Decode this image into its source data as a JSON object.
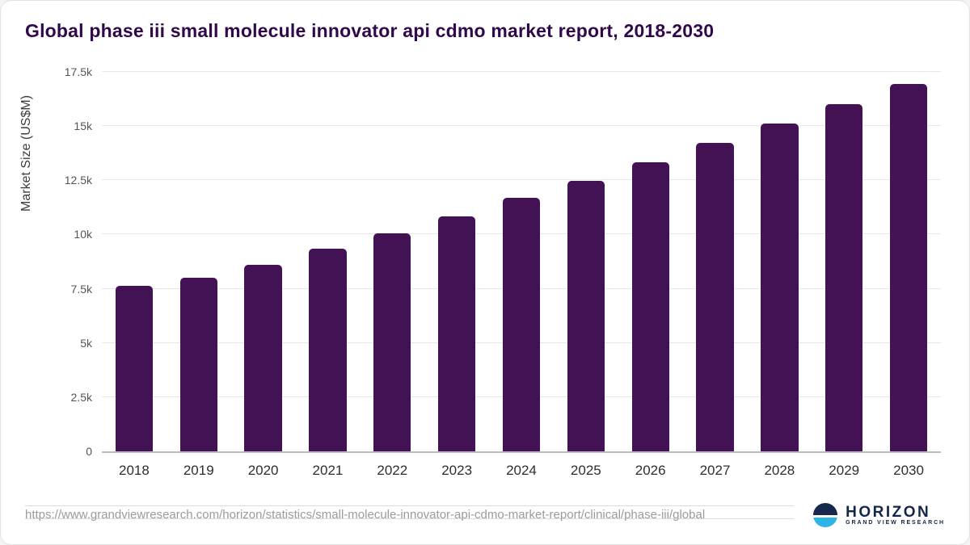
{
  "title": "Global phase iii small molecule innovator api cdmo market report, 2018-2030",
  "chart_data": {
    "type": "bar",
    "title": "Global phase iii small molecule innovator api cdmo market report, 2018-2030",
    "categories": [
      "2018",
      "2019",
      "2020",
      "2021",
      "2022",
      "2023",
      "2024",
      "2025",
      "2026",
      "2027",
      "2028",
      "2029",
      "2030"
    ],
    "values": [
      7620,
      7990,
      8590,
      9360,
      10040,
      10830,
      11680,
      12470,
      13320,
      14210,
      15110,
      16020,
      16950
    ],
    "xlabel": "",
    "ylabel": "Market Size (US$M)",
    "ylim": [
      0,
      17500
    ],
    "yticks": [
      0,
      2500,
      5000,
      7500,
      10000,
      12500,
      15000,
      17500
    ],
    "ytick_labels": [
      "0",
      "2.5k",
      "5k",
      "7.5k",
      "10k",
      "12.5k",
      "15k",
      "17.5k"
    ],
    "grid": "horizontal",
    "legend": "none",
    "bar_color": "#431254"
  },
  "footer": {
    "source_url": "https://www.grandviewresearch.com/horizon/statistics/small-molecule-innovator-api-cdmo-market-report/clinical/phase-iii/global",
    "logo": {
      "name": "HORIZON",
      "subtitle": "GRAND VIEW RESEARCH"
    }
  },
  "colors": {
    "title_text": "#31094a",
    "bar": "#431254",
    "gridline": "#e8e8e8",
    "axis_line": "#bcbcbc",
    "y_tick_text": "#555555",
    "x_tick_text": "#2e2e2e",
    "url_text": "#9b9b9b",
    "logo_navy": "#16294d",
    "logo_blue": "#2fb4e8"
  }
}
